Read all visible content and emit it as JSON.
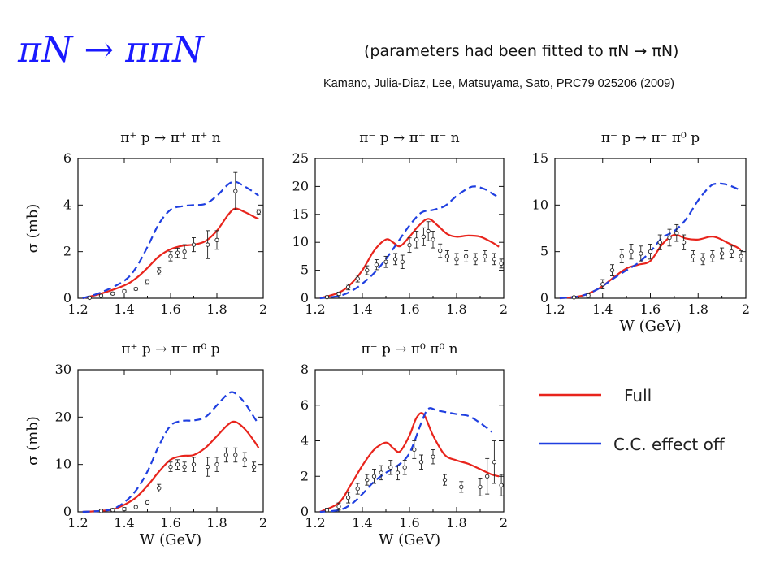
{
  "header": {
    "title": "πN → ππN",
    "subtitle": "(parameters had been fitted to πN → πN)",
    "citation": "Kamano, Julia-Diaz, Lee, Matsuyama, Sato, PRC79 025206 (2009)"
  },
  "colors": {
    "full": "#e8241c",
    "cc_off": "#1f3fe0",
    "data": "#222222"
  },
  "legend": [
    {
      "label": "Full",
      "style": "solid",
      "color": "#e8241c"
    },
    {
      "label": "C.C. effect off",
      "style": "solid",
      "color": "#1f3fe0"
    }
  ],
  "chart_data": [
    {
      "type": "line",
      "title": "π⁺ p → π⁺ π⁺ n",
      "xlabel": "",
      "ylabel": "σ (mb)",
      "xlim": [
        1.2,
        2.0
      ],
      "ylim": [
        0,
        6
      ],
      "xticks": [
        "1.2",
        "1.4",
        "1.6",
        "1.8",
        "2"
      ],
      "yticks": [
        "0",
        "2",
        "4",
        "6"
      ],
      "series": [
        {
          "name": "Full",
          "style": "solid",
          "x": [
            1.22,
            1.3,
            1.4,
            1.45,
            1.5,
            1.55,
            1.6,
            1.65,
            1.7,
            1.75,
            1.8,
            1.85,
            1.88,
            1.92,
            1.96,
            1.98
          ],
          "y": [
            0.0,
            0.2,
            0.55,
            0.85,
            1.3,
            1.8,
            2.1,
            2.25,
            2.3,
            2.45,
            2.9,
            3.6,
            3.85,
            3.7,
            3.5,
            3.4
          ]
        },
        {
          "name": "C.C. effect off",
          "style": "dashed",
          "x": [
            1.22,
            1.3,
            1.4,
            1.45,
            1.5,
            1.55,
            1.6,
            1.65,
            1.7,
            1.75,
            1.8,
            1.85,
            1.88,
            1.92,
            1.96,
            1.98
          ],
          "y": [
            0.0,
            0.25,
            0.75,
            1.3,
            2.2,
            3.2,
            3.8,
            3.95,
            4.0,
            4.05,
            4.4,
            4.9,
            5.0,
            4.8,
            4.55,
            4.4
          ]
        },
        {
          "name": "data",
          "style": "points",
          "x": [
            1.25,
            1.3,
            1.35,
            1.4,
            1.45,
            1.5,
            1.55,
            1.6,
            1.63,
            1.66,
            1.7,
            1.76,
            1.8,
            1.88,
            1.98
          ],
          "y": [
            0.02,
            0.1,
            0.2,
            0.3,
            0.4,
            0.7,
            1.15,
            1.8,
            1.95,
            2.0,
            2.3,
            2.3,
            2.5,
            4.6,
            3.7
          ],
          "err": [
            0.02,
            0.05,
            0.05,
            0.05,
            0.05,
            0.1,
            0.15,
            0.2,
            0.2,
            0.3,
            0.3,
            0.6,
            0.4,
            0.8,
            0.1
          ]
        }
      ]
    },
    {
      "type": "line",
      "title": "π⁻ p → π⁺ π⁻ n",
      "xlabel": "",
      "ylabel": "",
      "xlim": [
        1.2,
        2.0
      ],
      "ylim": [
        0,
        25
      ],
      "xticks": [
        "1.2",
        "1.4",
        "1.6",
        "1.8",
        "2"
      ],
      "yticks": [
        "0",
        "5",
        "10",
        "15",
        "20",
        "25"
      ],
      "series": [
        {
          "name": "Full",
          "style": "solid",
          "x": [
            1.22,
            1.3,
            1.35,
            1.4,
            1.45,
            1.5,
            1.53,
            1.56,
            1.6,
            1.64,
            1.68,
            1.72,
            1.76,
            1.8,
            1.85,
            1.9,
            1.95,
            1.98
          ],
          "y": [
            0.0,
            1.0,
            2.5,
            5.0,
            8.5,
            10.5,
            10.0,
            9.3,
            11.0,
            13.0,
            14.2,
            13.0,
            11.5,
            11.0,
            11.2,
            11.0,
            10.0,
            9.2
          ]
        },
        {
          "name": "C.C. effect off",
          "style": "dashed",
          "x": [
            1.22,
            1.3,
            1.35,
            1.4,
            1.45,
            1.5,
            1.55,
            1.6,
            1.65,
            1.7,
            1.75,
            1.8,
            1.85,
            1.88,
            1.92,
            1.96,
            1.98
          ],
          "y": [
            0.0,
            0.4,
            1.2,
            2.6,
            4.5,
            7.0,
            10.0,
            13.0,
            15.3,
            15.8,
            16.5,
            18.3,
            19.7,
            20.0,
            19.5,
            18.5,
            18.0
          ]
        },
        {
          "name": "data",
          "style": "points",
          "x": [
            1.25,
            1.3,
            1.34,
            1.38,
            1.42,
            1.46,
            1.5,
            1.54,
            1.57,
            1.6,
            1.63,
            1.66,
            1.68,
            1.7,
            1.73,
            1.76,
            1.8,
            1.84,
            1.88,
            1.92,
            1.96,
            1.99
          ],
          "y": [
            0.2,
            0.8,
            2.0,
            3.5,
            5.0,
            6.0,
            6.5,
            7.0,
            6.5,
            9.5,
            10.5,
            11.0,
            12.0,
            10.5,
            8.5,
            7.5,
            7.0,
            7.5,
            7.0,
            7.5,
            7.0,
            6.2
          ],
          "err": [
            0.2,
            0.3,
            0.5,
            0.6,
            0.8,
            0.9,
            1.0,
            1.0,
            1.2,
            1.3,
            1.5,
            1.6,
            1.7,
            1.5,
            1.2,
            1.0,
            1.0,
            1.0,
            1.0,
            1.0,
            1.0,
            0.8
          ]
        }
      ]
    },
    {
      "type": "line",
      "title": "π⁻ p → π⁻ π⁰ p",
      "xlabel": "W (GeV)",
      "ylabel": "",
      "xlim": [
        1.2,
        2.0
      ],
      "ylim": [
        0,
        15
      ],
      "xticks": [
        "1.2",
        "1.4",
        "1.6",
        "1.8",
        "2"
      ],
      "yticks": [
        "0",
        "5",
        "10",
        "15"
      ],
      "series": [
        {
          "name": "Full",
          "style": "solid",
          "x": [
            1.22,
            1.3,
            1.35,
            1.4,
            1.45,
            1.5,
            1.55,
            1.6,
            1.65,
            1.7,
            1.75,
            1.8,
            1.85,
            1.88,
            1.92,
            1.96,
            1.98
          ],
          "y": [
            0.0,
            0.2,
            0.6,
            1.3,
            2.3,
            3.2,
            3.6,
            4.0,
            5.8,
            6.8,
            6.4,
            6.3,
            6.6,
            6.5,
            6.0,
            5.5,
            5.2
          ]
        },
        {
          "name": "C.C. effect off",
          "style": "dashed",
          "x": [
            1.22,
            1.3,
            1.35,
            1.4,
            1.45,
            1.5,
            1.55,
            1.6,
            1.65,
            1.7,
            1.75,
            1.8,
            1.85,
            1.88,
            1.92,
            1.96,
            1.98
          ],
          "y": [
            0.0,
            0.2,
            0.6,
            1.3,
            2.2,
            3.0,
            3.8,
            5.0,
            6.5,
            7.2,
            8.5,
            10.5,
            12.0,
            12.3,
            12.2,
            11.8,
            11.5
          ]
        },
        {
          "name": "data",
          "style": "points",
          "x": [
            1.28,
            1.34,
            1.4,
            1.44,
            1.48,
            1.52,
            1.56,
            1.6,
            1.64,
            1.68,
            1.71,
            1.74,
            1.78,
            1.82,
            1.86,
            1.9,
            1.94,
            1.98
          ],
          "y": [
            0.1,
            0.3,
            1.5,
            3.0,
            4.5,
            5.0,
            4.8,
            5.0,
            6.0,
            6.5,
            7.0,
            6.0,
            4.5,
            4.2,
            4.5,
            4.8,
            5.0,
            4.5
          ],
          "err": [
            0.1,
            0.2,
            0.5,
            0.6,
            0.7,
            0.8,
            0.8,
            0.8,
            0.8,
            0.9,
            0.9,
            0.8,
            0.6,
            0.6,
            0.6,
            0.6,
            0.6,
            0.6
          ]
        }
      ]
    },
    {
      "type": "line",
      "title": "π⁺ p → π⁺ π⁰ p",
      "xlabel": "W (GeV)",
      "ylabel": "σ (mb)",
      "xlim": [
        1.2,
        2.0
      ],
      "ylim": [
        0,
        30
      ],
      "xticks": [
        "1.2",
        "1.4",
        "1.6",
        "1.8",
        "2"
      ],
      "yticks": [
        "0",
        "10",
        "20",
        "30"
      ],
      "series": [
        {
          "name": "Full",
          "style": "solid",
          "x": [
            1.22,
            1.3,
            1.35,
            1.4,
            1.45,
            1.5,
            1.55,
            1.6,
            1.65,
            1.7,
            1.75,
            1.8,
            1.85,
            1.88,
            1.92,
            1.96,
            1.98
          ],
          "y": [
            0.0,
            0.2,
            0.5,
            1.5,
            3.0,
            5.5,
            8.5,
            11.0,
            11.8,
            12.0,
            13.5,
            16.0,
            18.5,
            19.0,
            17.5,
            15.0,
            13.5
          ]
        },
        {
          "name": "C.C. effect off",
          "style": "dashed",
          "x": [
            1.22,
            1.3,
            1.35,
            1.4,
            1.45,
            1.5,
            1.55,
            1.6,
            1.65,
            1.7,
            1.75,
            1.8,
            1.85,
            1.88,
            1.92,
            1.96,
            1.98
          ],
          "y": [
            0.0,
            0.2,
            0.6,
            2.0,
            4.5,
            8.5,
            14.0,
            18.2,
            19.2,
            19.3,
            20.0,
            22.5,
            25.0,
            25.0,
            23.0,
            20.0,
            18.5
          ]
        },
        {
          "name": "data",
          "style": "points",
          "x": [
            1.3,
            1.35,
            1.4,
            1.45,
            1.5,
            1.55,
            1.6,
            1.63,
            1.66,
            1.7,
            1.76,
            1.8,
            1.84,
            1.88,
            1.92,
            1.96
          ],
          "y": [
            0.2,
            0.4,
            0.6,
            1.0,
            2.0,
            5.0,
            9.5,
            10.0,
            9.5,
            10.0,
            9.5,
            10.0,
            12.0,
            12.0,
            11.0,
            9.5
          ],
          "err": [
            0.2,
            0.3,
            0.3,
            0.4,
            0.5,
            0.8,
            1.0,
            1.0,
            1.0,
            1.5,
            2.0,
            1.5,
            1.5,
            1.5,
            1.5,
            1.0
          ]
        }
      ]
    },
    {
      "type": "line",
      "title": "π⁻ p → π⁰ π⁰ n",
      "xlabel": "W (GeV)",
      "ylabel": "",
      "xlim": [
        1.2,
        2.0
      ],
      "ylim": [
        0,
        8
      ],
      "xticks": [
        "1.2",
        "1.4",
        "1.6",
        "1.8",
        "2"
      ],
      "yticks": [
        "0",
        "2",
        "4",
        "6",
        "8"
      ],
      "series": [
        {
          "name": "Full",
          "style": "solid",
          "x": [
            1.22,
            1.3,
            1.35,
            1.4,
            1.45,
            1.5,
            1.53,
            1.56,
            1.6,
            1.63,
            1.66,
            1.7,
            1.75,
            1.8,
            1.85,
            1.9,
            1.95,
            1.98
          ],
          "y": [
            0.0,
            0.5,
            1.5,
            2.6,
            3.5,
            3.9,
            3.6,
            3.4,
            4.3,
            5.3,
            5.5,
            4.3,
            3.2,
            2.9,
            2.7,
            2.4,
            2.1,
            2.0
          ]
        },
        {
          "name": "C.C. effect off",
          "style": "dashed",
          "x": [
            1.22,
            1.3,
            1.35,
            1.4,
            1.45,
            1.5,
            1.55,
            1.6,
            1.65,
            1.68,
            1.72,
            1.8,
            1.85,
            1.9,
            1.95
          ],
          "y": [
            0.0,
            0.1,
            0.4,
            1.0,
            1.7,
            2.2,
            2.6,
            3.3,
            5.0,
            5.8,
            5.7,
            5.5,
            5.4,
            5.0,
            4.5
          ]
        },
        {
          "name": "data",
          "style": "points",
          "x": [
            1.25,
            1.3,
            1.34,
            1.38,
            1.42,
            1.45,
            1.48,
            1.52,
            1.55,
            1.58,
            1.62,
            1.65,
            1.7,
            1.75,
            1.82,
            1.9,
            1.93,
            1.96,
            1.99
          ],
          "y": [
            0.1,
            0.3,
            0.8,
            1.3,
            1.8,
            2.0,
            2.2,
            2.5,
            2.2,
            2.5,
            3.5,
            2.8,
            3.1,
            1.8,
            1.4,
            1.4,
            2.0,
            2.8,
            1.5
          ],
          "err": [
            0.1,
            0.2,
            0.3,
            0.3,
            0.3,
            0.4,
            0.4,
            0.4,
            0.4,
            0.4,
            0.5,
            0.4,
            0.4,
            0.3,
            0.3,
            0.5,
            1.0,
            1.2,
            0.6
          ]
        }
      ]
    }
  ]
}
